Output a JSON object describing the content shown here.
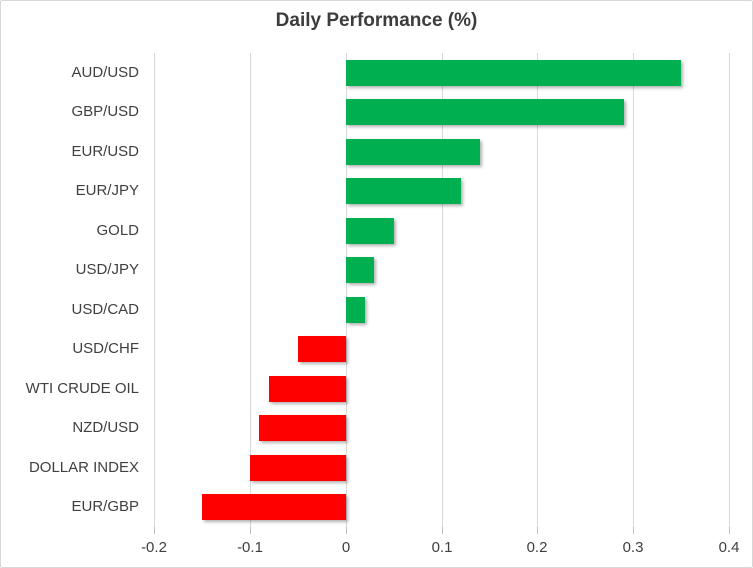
{
  "chart_data": {
    "type": "bar",
    "orientation": "horizontal",
    "title": "Daily Performance (%)",
    "categories": [
      "AUD/USD",
      "GBP/USD",
      "EUR/USD",
      "EUR/JPY",
      "GOLD",
      "USD/JPY",
      "USD/CAD",
      "USD/CHF",
      "WTI CRUDE OIL",
      "NZD/USD",
      "DOLLAR INDEX",
      "EUR/GBP"
    ],
    "values": [
      0.35,
      0.29,
      0.14,
      0.12,
      0.05,
      0.03,
      0.02,
      -0.05,
      -0.08,
      -0.09,
      -0.1,
      -0.15
    ],
    "xlabel": "",
    "ylabel": "",
    "xlim": [
      -0.2,
      0.4
    ],
    "x_ticks": [
      -0.2,
      -0.1,
      0,
      0.1,
      0.2,
      0.3,
      0.4
    ],
    "x_tick_labels": [
      "-0.2",
      "-0.1",
      "0",
      "0.1",
      "0.2",
      "0.3",
      "0.4"
    ],
    "grid": true,
    "legend": "none",
    "colors": {
      "positive": "#00B050",
      "negative": "#FF0000",
      "gridline": "#D9D9D9",
      "text": "#404040"
    }
  }
}
